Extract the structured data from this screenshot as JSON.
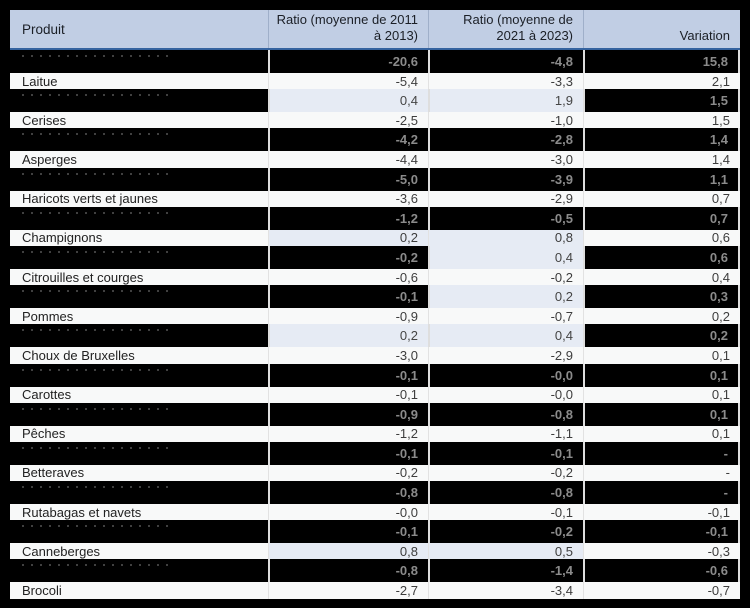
{
  "table": {
    "headers": [
      "Produit",
      "Ratio (moyenne de 2011 à 2013)",
      "Ratio (moyenne de 2021 à 2023)",
      "Variation"
    ],
    "rows": [
      {
        "product": "",
        "ratio_2011_2013": "-20,6",
        "ratio_2021_2023": "-4,8",
        "variation": "15,8",
        "redacted": true,
        "hl1": false,
        "hl2": false
      },
      {
        "product": "Laitue",
        "ratio_2011_2013": "-5,4",
        "ratio_2021_2023": "-3,3",
        "variation": "2,1",
        "redacted": false,
        "hl1": false,
        "hl2": false
      },
      {
        "product": "",
        "ratio_2011_2013": "0,4",
        "ratio_2021_2023": "1,9",
        "variation": "1,5",
        "redacted": true,
        "hl1": true,
        "hl2": true
      },
      {
        "product": "Cerises",
        "ratio_2011_2013": "-2,5",
        "ratio_2021_2023": "-1,0",
        "variation": "1,5",
        "redacted": false,
        "hl1": false,
        "hl2": false
      },
      {
        "product": "",
        "ratio_2011_2013": "-4,2",
        "ratio_2021_2023": "-2,8",
        "variation": "1,4",
        "redacted": true,
        "hl1": false,
        "hl2": false
      },
      {
        "product": "Asperges",
        "ratio_2011_2013": "-4,4",
        "ratio_2021_2023": "-3,0",
        "variation": "1,4",
        "redacted": false,
        "hl1": false,
        "hl2": false
      },
      {
        "product": "",
        "ratio_2011_2013": "-5,0",
        "ratio_2021_2023": "-3,9",
        "variation": "1,1",
        "redacted": true,
        "hl1": false,
        "hl2": false
      },
      {
        "product": "Haricots verts et jaunes",
        "ratio_2011_2013": "-3,6",
        "ratio_2021_2023": "-2,9",
        "variation": "0,7",
        "redacted": false,
        "hl1": false,
        "hl2": false
      },
      {
        "product": "",
        "ratio_2011_2013": "-1,2",
        "ratio_2021_2023": "-0,5",
        "variation": "0,7",
        "redacted": true,
        "hl1": false,
        "hl2": false
      },
      {
        "product": "Champignons",
        "ratio_2011_2013": "0,2",
        "ratio_2021_2023": "0,8",
        "variation": "0,6",
        "redacted": false,
        "hl1": true,
        "hl2": true
      },
      {
        "product": "",
        "ratio_2011_2013": "-0,2",
        "ratio_2021_2023": "0,4",
        "variation": "0,6",
        "redacted": true,
        "hl1": false,
        "hl2": true
      },
      {
        "product": "Citrouilles et courges",
        "ratio_2011_2013": "-0,6",
        "ratio_2021_2023": "-0,2",
        "variation": "0,4",
        "redacted": false,
        "hl1": false,
        "hl2": false
      },
      {
        "product": "",
        "ratio_2011_2013": "-0,1",
        "ratio_2021_2023": "0,2",
        "variation": "0,3",
        "redacted": true,
        "hl1": false,
        "hl2": true
      },
      {
        "product": "Pommes",
        "ratio_2011_2013": "-0,9",
        "ratio_2021_2023": "-0,7",
        "variation": "0,2",
        "redacted": false,
        "hl1": false,
        "hl2": false
      },
      {
        "product": "",
        "ratio_2011_2013": "0,2",
        "ratio_2021_2023": "0,4",
        "variation": "0,2",
        "redacted": true,
        "hl1": true,
        "hl2": true
      },
      {
        "product": "Choux de Bruxelles",
        "ratio_2011_2013": "-3,0",
        "ratio_2021_2023": "-2,9",
        "variation": "0,1",
        "redacted": false,
        "hl1": false,
        "hl2": false
      },
      {
        "product": "",
        "ratio_2011_2013": "-0,1",
        "ratio_2021_2023": "-0,0",
        "variation": "0,1",
        "redacted": true,
        "hl1": false,
        "hl2": false
      },
      {
        "product": "Carottes",
        "ratio_2011_2013": "-0,1",
        "ratio_2021_2023": "-0,0",
        "variation": "0,1",
        "redacted": false,
        "hl1": false,
        "hl2": false
      },
      {
        "product": "",
        "ratio_2011_2013": "-0,9",
        "ratio_2021_2023": "-0,8",
        "variation": "0,1",
        "redacted": true,
        "hl1": false,
        "hl2": false
      },
      {
        "product": "Pêches",
        "ratio_2011_2013": "-1,2",
        "ratio_2021_2023": "-1,1",
        "variation": "0,1",
        "redacted": false,
        "hl1": false,
        "hl2": false
      },
      {
        "product": "",
        "ratio_2011_2013": "-0,1",
        "ratio_2021_2023": "-0,1",
        "variation": "-",
        "redacted": true,
        "hl1": false,
        "hl2": false
      },
      {
        "product": "Betteraves",
        "ratio_2011_2013": "-0,2",
        "ratio_2021_2023": "-0,2",
        "variation": "-",
        "redacted": false,
        "hl1": false,
        "hl2": false
      },
      {
        "product": "",
        "ratio_2011_2013": "-0,8",
        "ratio_2021_2023": "-0,8",
        "variation": "-",
        "redacted": true,
        "hl1": false,
        "hl2": false
      },
      {
        "product": "Rutabagas et navets",
        "ratio_2011_2013": "-0,0",
        "ratio_2021_2023": "-0,1",
        "variation": "-0,1",
        "redacted": false,
        "hl1": false,
        "hl2": false
      },
      {
        "product": "",
        "ratio_2011_2013": "-0,1",
        "ratio_2021_2023": "-0,2",
        "variation": "-0,1",
        "redacted": true,
        "hl1": false,
        "hl2": false
      },
      {
        "product": "Canneberges",
        "ratio_2011_2013": "0,8",
        "ratio_2021_2023": "0,5",
        "variation": "-0,3",
        "redacted": false,
        "hl1": true,
        "hl2": true
      },
      {
        "product": "",
        "ratio_2011_2013": "-0,8",
        "ratio_2021_2023": "-1,4",
        "variation": "-0,6",
        "redacted": true,
        "hl1": false,
        "hl2": false
      },
      {
        "product": "Brocoli",
        "ratio_2011_2013": "-2,7",
        "ratio_2021_2023": "-3,4",
        "variation": "-0,7",
        "redacted": false,
        "hl1": false,
        "hl2": false
      }
    ]
  },
  "colors": {
    "header_bg": "#c1cee4",
    "header_border": "#35639f",
    "row_bg": "#f8f9f9",
    "redacted_bg": "#000000",
    "redacted_text": "#8b8b8b",
    "highlight_bg": "#e6ebf4"
  }
}
